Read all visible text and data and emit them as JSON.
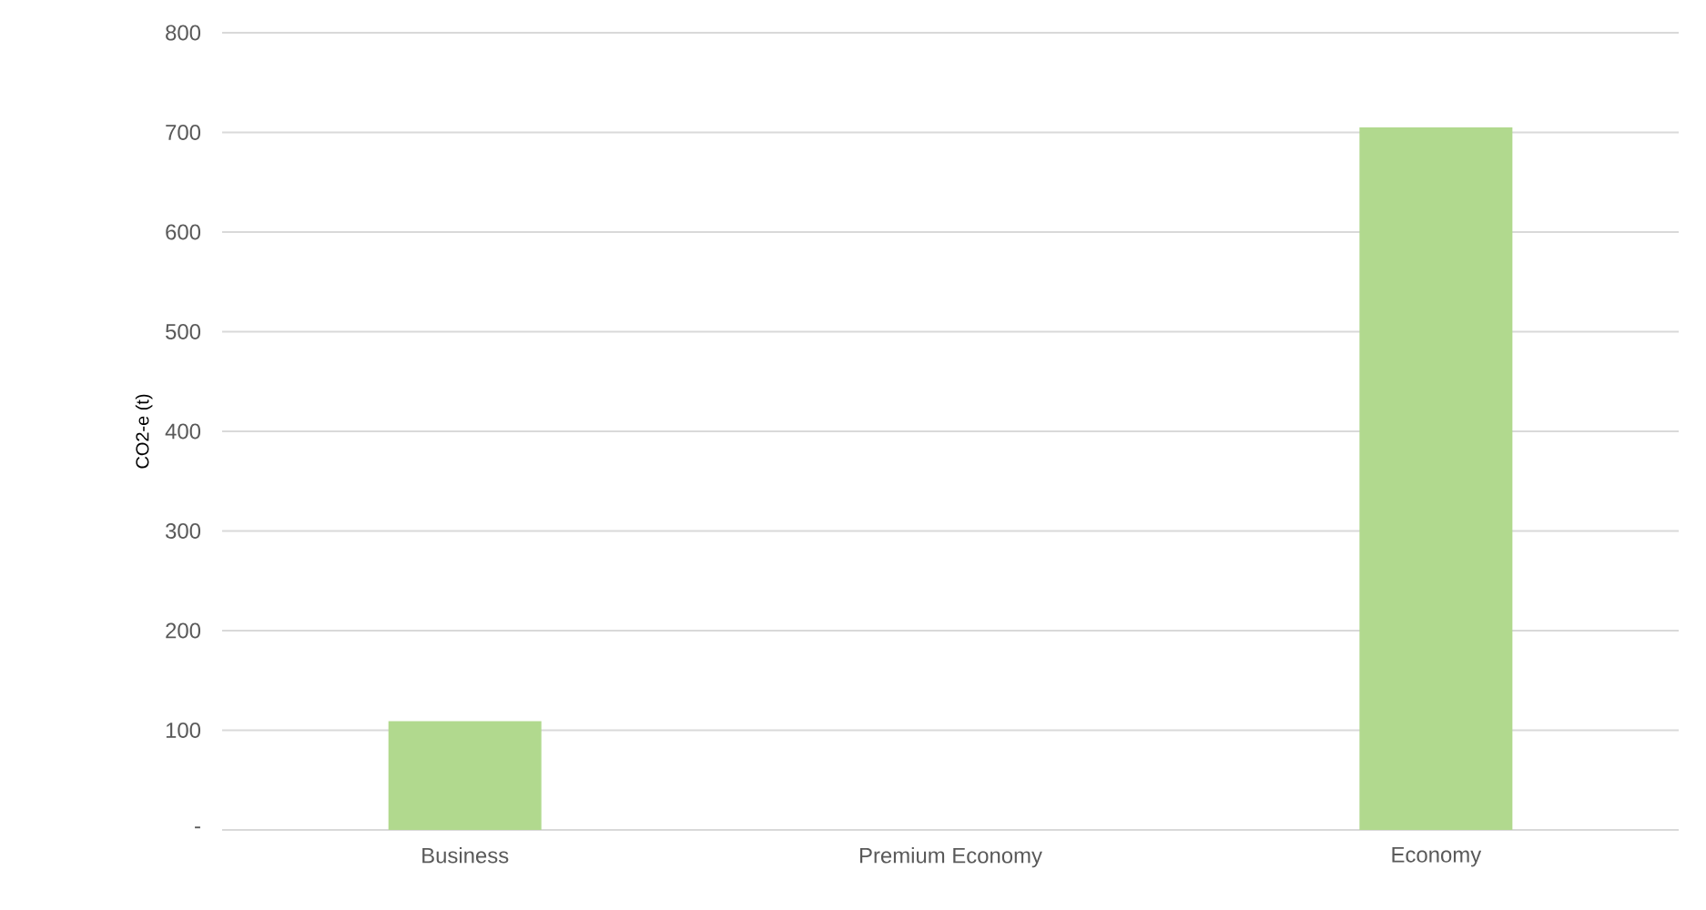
{
  "chart_data": {
    "type": "bar",
    "ylabel": "CO2-e (t)",
    "categories": [
      "Business",
      "Premium Economy",
      "Economy"
    ],
    "values": [
      109,
      0,
      705
    ],
    "color": "#b1d98e",
    "ylim": [
      0,
      800
    ],
    "yticks": [
      {
        "value": 0,
        "label": "-"
      },
      100,
      200,
      300,
      400,
      500,
      600,
      700,
      800
    ],
    "grid": "y"
  }
}
